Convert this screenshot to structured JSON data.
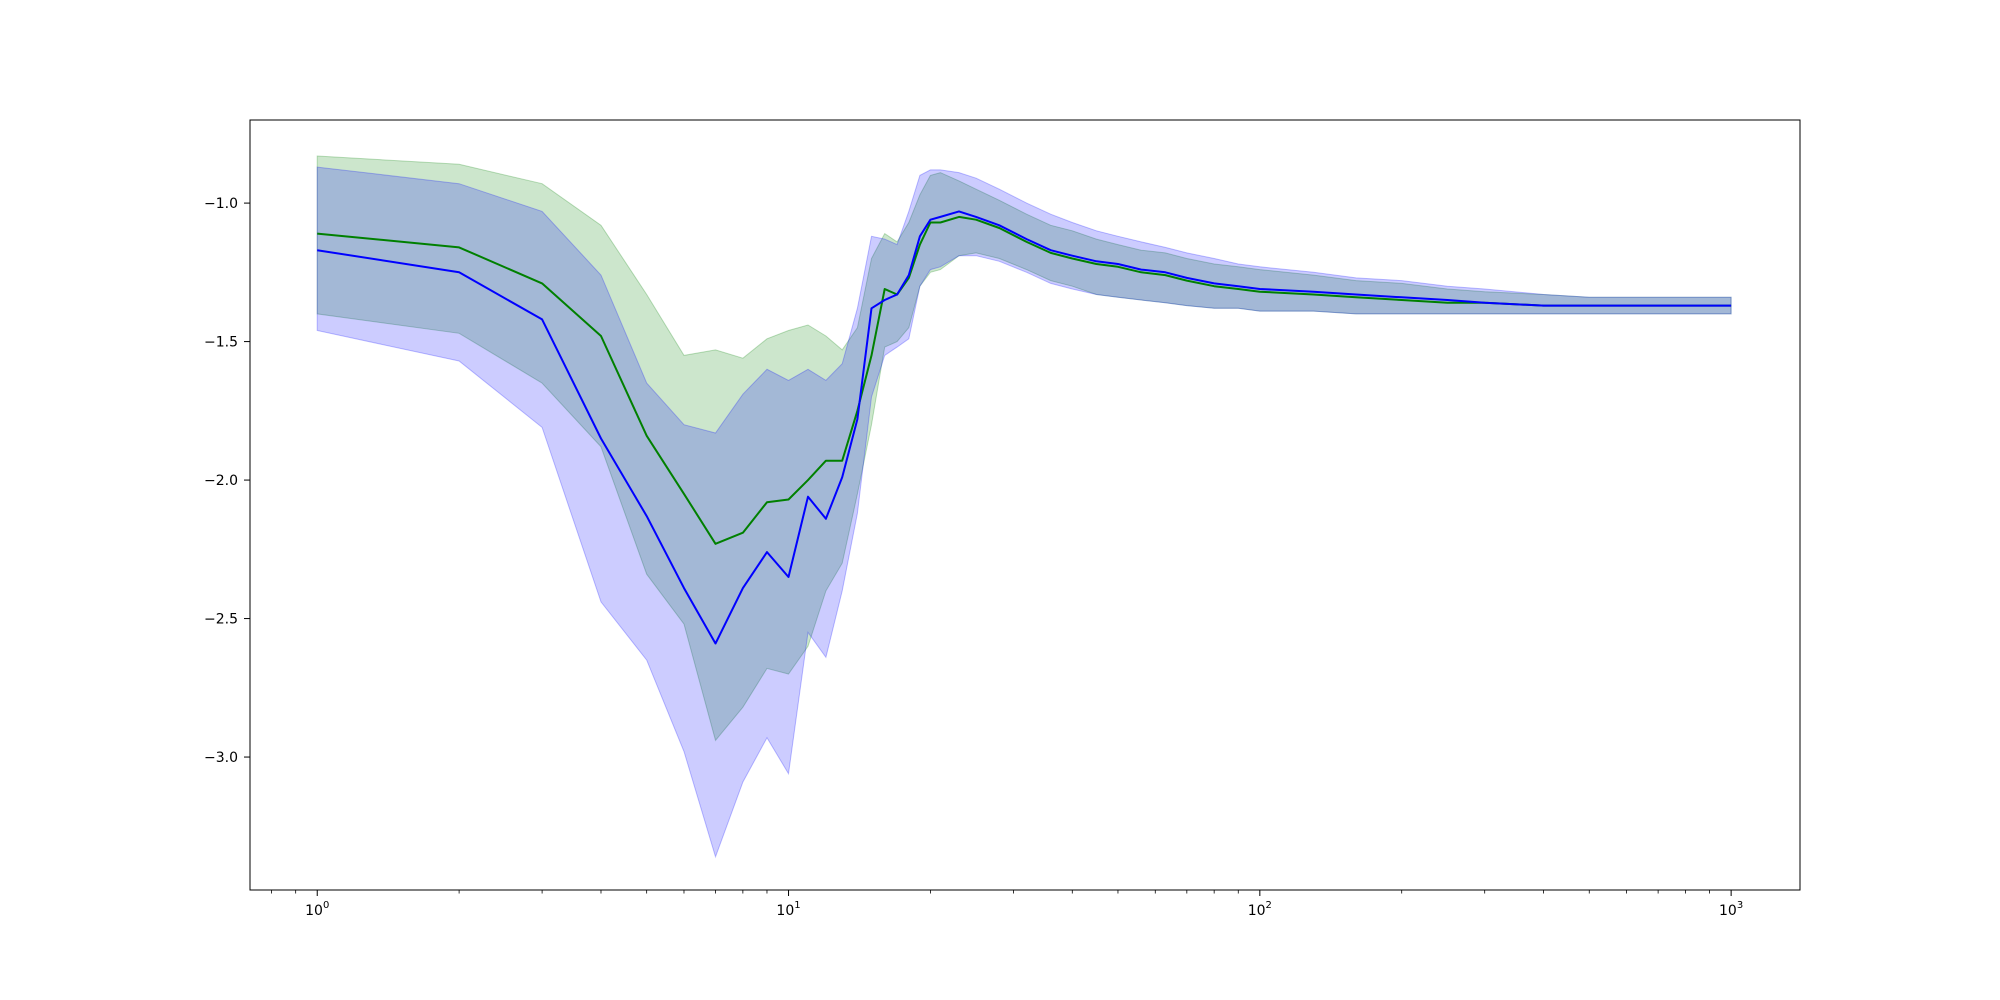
{
  "chart_data": {
    "type": "line",
    "title": "",
    "xlabel": "",
    "ylabel": "",
    "x_scale": "log",
    "xlim": [
      0.72,
      1400
    ],
    "ylim": [
      -3.48,
      -0.7
    ],
    "grid": false,
    "x_ticks": [
      {
        "value": 1,
        "base": "10",
        "exp": "0"
      },
      {
        "value": 10,
        "base": "10",
        "exp": "1"
      },
      {
        "value": 100,
        "base": "10",
        "exp": "2"
      },
      {
        "value": 1000,
        "base": "10",
        "exp": "3"
      }
    ],
    "y_ticks": [
      {
        "value": -1.0,
        "label": "−1.0"
      },
      {
        "value": -1.5,
        "label": "−1.5"
      },
      {
        "value": -2.0,
        "label": "−2.0"
      },
      {
        "value": -2.5,
        "label": "−2.5"
      },
      {
        "value": -3.0,
        "label": "−3.0"
      }
    ],
    "series": [
      {
        "color": "#008000",
        "band_color": "#008000",
        "band_opacity": 0.2,
        "x": [
          1,
          2,
          3,
          4,
          5,
          6,
          7,
          8,
          9,
          10,
          11,
          12,
          13,
          14,
          15,
          16,
          17,
          18,
          19,
          20,
          21,
          23,
          25,
          28,
          32,
          36,
          40,
          45,
          50,
          56,
          63,
          70,
          80,
          90,
          100,
          130,
          160,
          200,
          250,
          300,
          400,
          500,
          600,
          700,
          800,
          900,
          1000
        ],
        "mean": [
          -1.11,
          -1.16,
          -1.29,
          -1.48,
          -1.84,
          -2.05,
          -2.23,
          -2.19,
          -2.08,
          -2.07,
          -2.0,
          -1.93,
          -1.93,
          -1.75,
          -1.55,
          -1.31,
          -1.33,
          -1.27,
          -1.15,
          -1.07,
          -1.07,
          -1.05,
          -1.06,
          -1.09,
          -1.14,
          -1.18,
          -1.2,
          -1.22,
          -1.23,
          -1.25,
          -1.26,
          -1.28,
          -1.3,
          -1.31,
          -1.32,
          -1.33,
          -1.34,
          -1.35,
          -1.36,
          -1.36,
          -1.37,
          -1.37,
          -1.37,
          -1.37,
          -1.37,
          -1.37,
          -1.37
        ],
        "upper": [
          -0.83,
          -0.86,
          -0.93,
          -1.08,
          -1.33,
          -1.55,
          -1.53,
          -1.56,
          -1.49,
          -1.46,
          -1.44,
          -1.48,
          -1.53,
          -1.45,
          -1.2,
          -1.11,
          -1.14,
          -1.07,
          -0.97,
          -0.9,
          -0.89,
          -0.92,
          -0.95,
          -0.99,
          -1.04,
          -1.08,
          -1.1,
          -1.13,
          -1.15,
          -1.17,
          -1.18,
          -1.2,
          -1.22,
          -1.23,
          -1.24,
          -1.26,
          -1.28,
          -1.29,
          -1.31,
          -1.32,
          -1.33,
          -1.34,
          -1.34,
          -1.34,
          -1.34,
          -1.34,
          -1.34
        ],
        "lower": [
          -1.4,
          -1.47,
          -1.65,
          -1.88,
          -2.34,
          -2.52,
          -2.94,
          -2.82,
          -2.68,
          -2.7,
          -2.6,
          -2.4,
          -2.3,
          -2.05,
          -1.8,
          -1.52,
          -1.5,
          -1.45,
          -1.3,
          -1.25,
          -1.24,
          -1.19,
          -1.18,
          -1.2,
          -1.24,
          -1.28,
          -1.3,
          -1.33,
          -1.34,
          -1.35,
          -1.36,
          -1.37,
          -1.38,
          -1.38,
          -1.39,
          -1.39,
          -1.4,
          -1.4,
          -1.4,
          -1.4,
          -1.4,
          -1.4,
          -1.4,
          -1.4,
          -1.4,
          -1.4,
          -1.4
        ]
      },
      {
        "color": "#0000ff",
        "band_color": "#0000ff",
        "band_opacity": 0.2,
        "x": [
          1,
          2,
          3,
          4,
          5,
          6,
          7,
          8,
          9,
          10,
          11,
          12,
          13,
          14,
          15,
          16,
          17,
          18,
          19,
          20,
          21,
          23,
          25,
          28,
          32,
          36,
          40,
          45,
          50,
          56,
          63,
          70,
          80,
          90,
          100,
          130,
          160,
          200,
          250,
          300,
          400,
          500,
          600,
          700,
          800,
          900,
          1000
        ],
        "mean": [
          -1.17,
          -1.25,
          -1.42,
          -1.85,
          -2.13,
          -2.39,
          -2.59,
          -2.39,
          -2.26,
          -2.35,
          -2.06,
          -2.14,
          -1.99,
          -1.78,
          -1.38,
          -1.35,
          -1.33,
          -1.26,
          -1.12,
          -1.06,
          -1.05,
          -1.03,
          -1.05,
          -1.08,
          -1.13,
          -1.17,
          -1.19,
          -1.21,
          -1.22,
          -1.24,
          -1.25,
          -1.27,
          -1.29,
          -1.3,
          -1.31,
          -1.32,
          -1.33,
          -1.34,
          -1.35,
          -1.36,
          -1.37,
          -1.37,
          -1.37,
          -1.37,
          -1.37,
          -1.37,
          -1.37
        ],
        "upper": [
          -0.87,
          -0.93,
          -1.03,
          -1.26,
          -1.65,
          -1.8,
          -1.83,
          -1.69,
          -1.6,
          -1.64,
          -1.6,
          -1.64,
          -1.58,
          -1.38,
          -1.12,
          -1.13,
          -1.15,
          -1.03,
          -0.9,
          -0.88,
          -0.88,
          -0.89,
          -0.91,
          -0.95,
          -1.0,
          -1.04,
          -1.07,
          -1.1,
          -1.12,
          -1.14,
          -1.16,
          -1.18,
          -1.2,
          -1.22,
          -1.23,
          -1.25,
          -1.27,
          -1.28,
          -1.3,
          -1.31,
          -1.33,
          -1.34,
          -1.34,
          -1.34,
          -1.34,
          -1.34,
          -1.34
        ],
        "lower": [
          -1.46,
          -1.57,
          -1.81,
          -2.44,
          -2.65,
          -2.98,
          -3.36,
          -3.09,
          -2.93,
          -3.06,
          -2.55,
          -2.64,
          -2.4,
          -2.12,
          -1.7,
          -1.55,
          -1.52,
          -1.49,
          -1.3,
          -1.24,
          -1.23,
          -1.19,
          -1.19,
          -1.21,
          -1.25,
          -1.29,
          -1.31,
          -1.33,
          -1.34,
          -1.35,
          -1.36,
          -1.37,
          -1.38,
          -1.38,
          -1.39,
          -1.39,
          -1.4,
          -1.4,
          -1.4,
          -1.4,
          -1.4,
          -1.4,
          -1.4,
          -1.4,
          -1.4,
          -1.4,
          -1.4
        ]
      }
    ]
  }
}
